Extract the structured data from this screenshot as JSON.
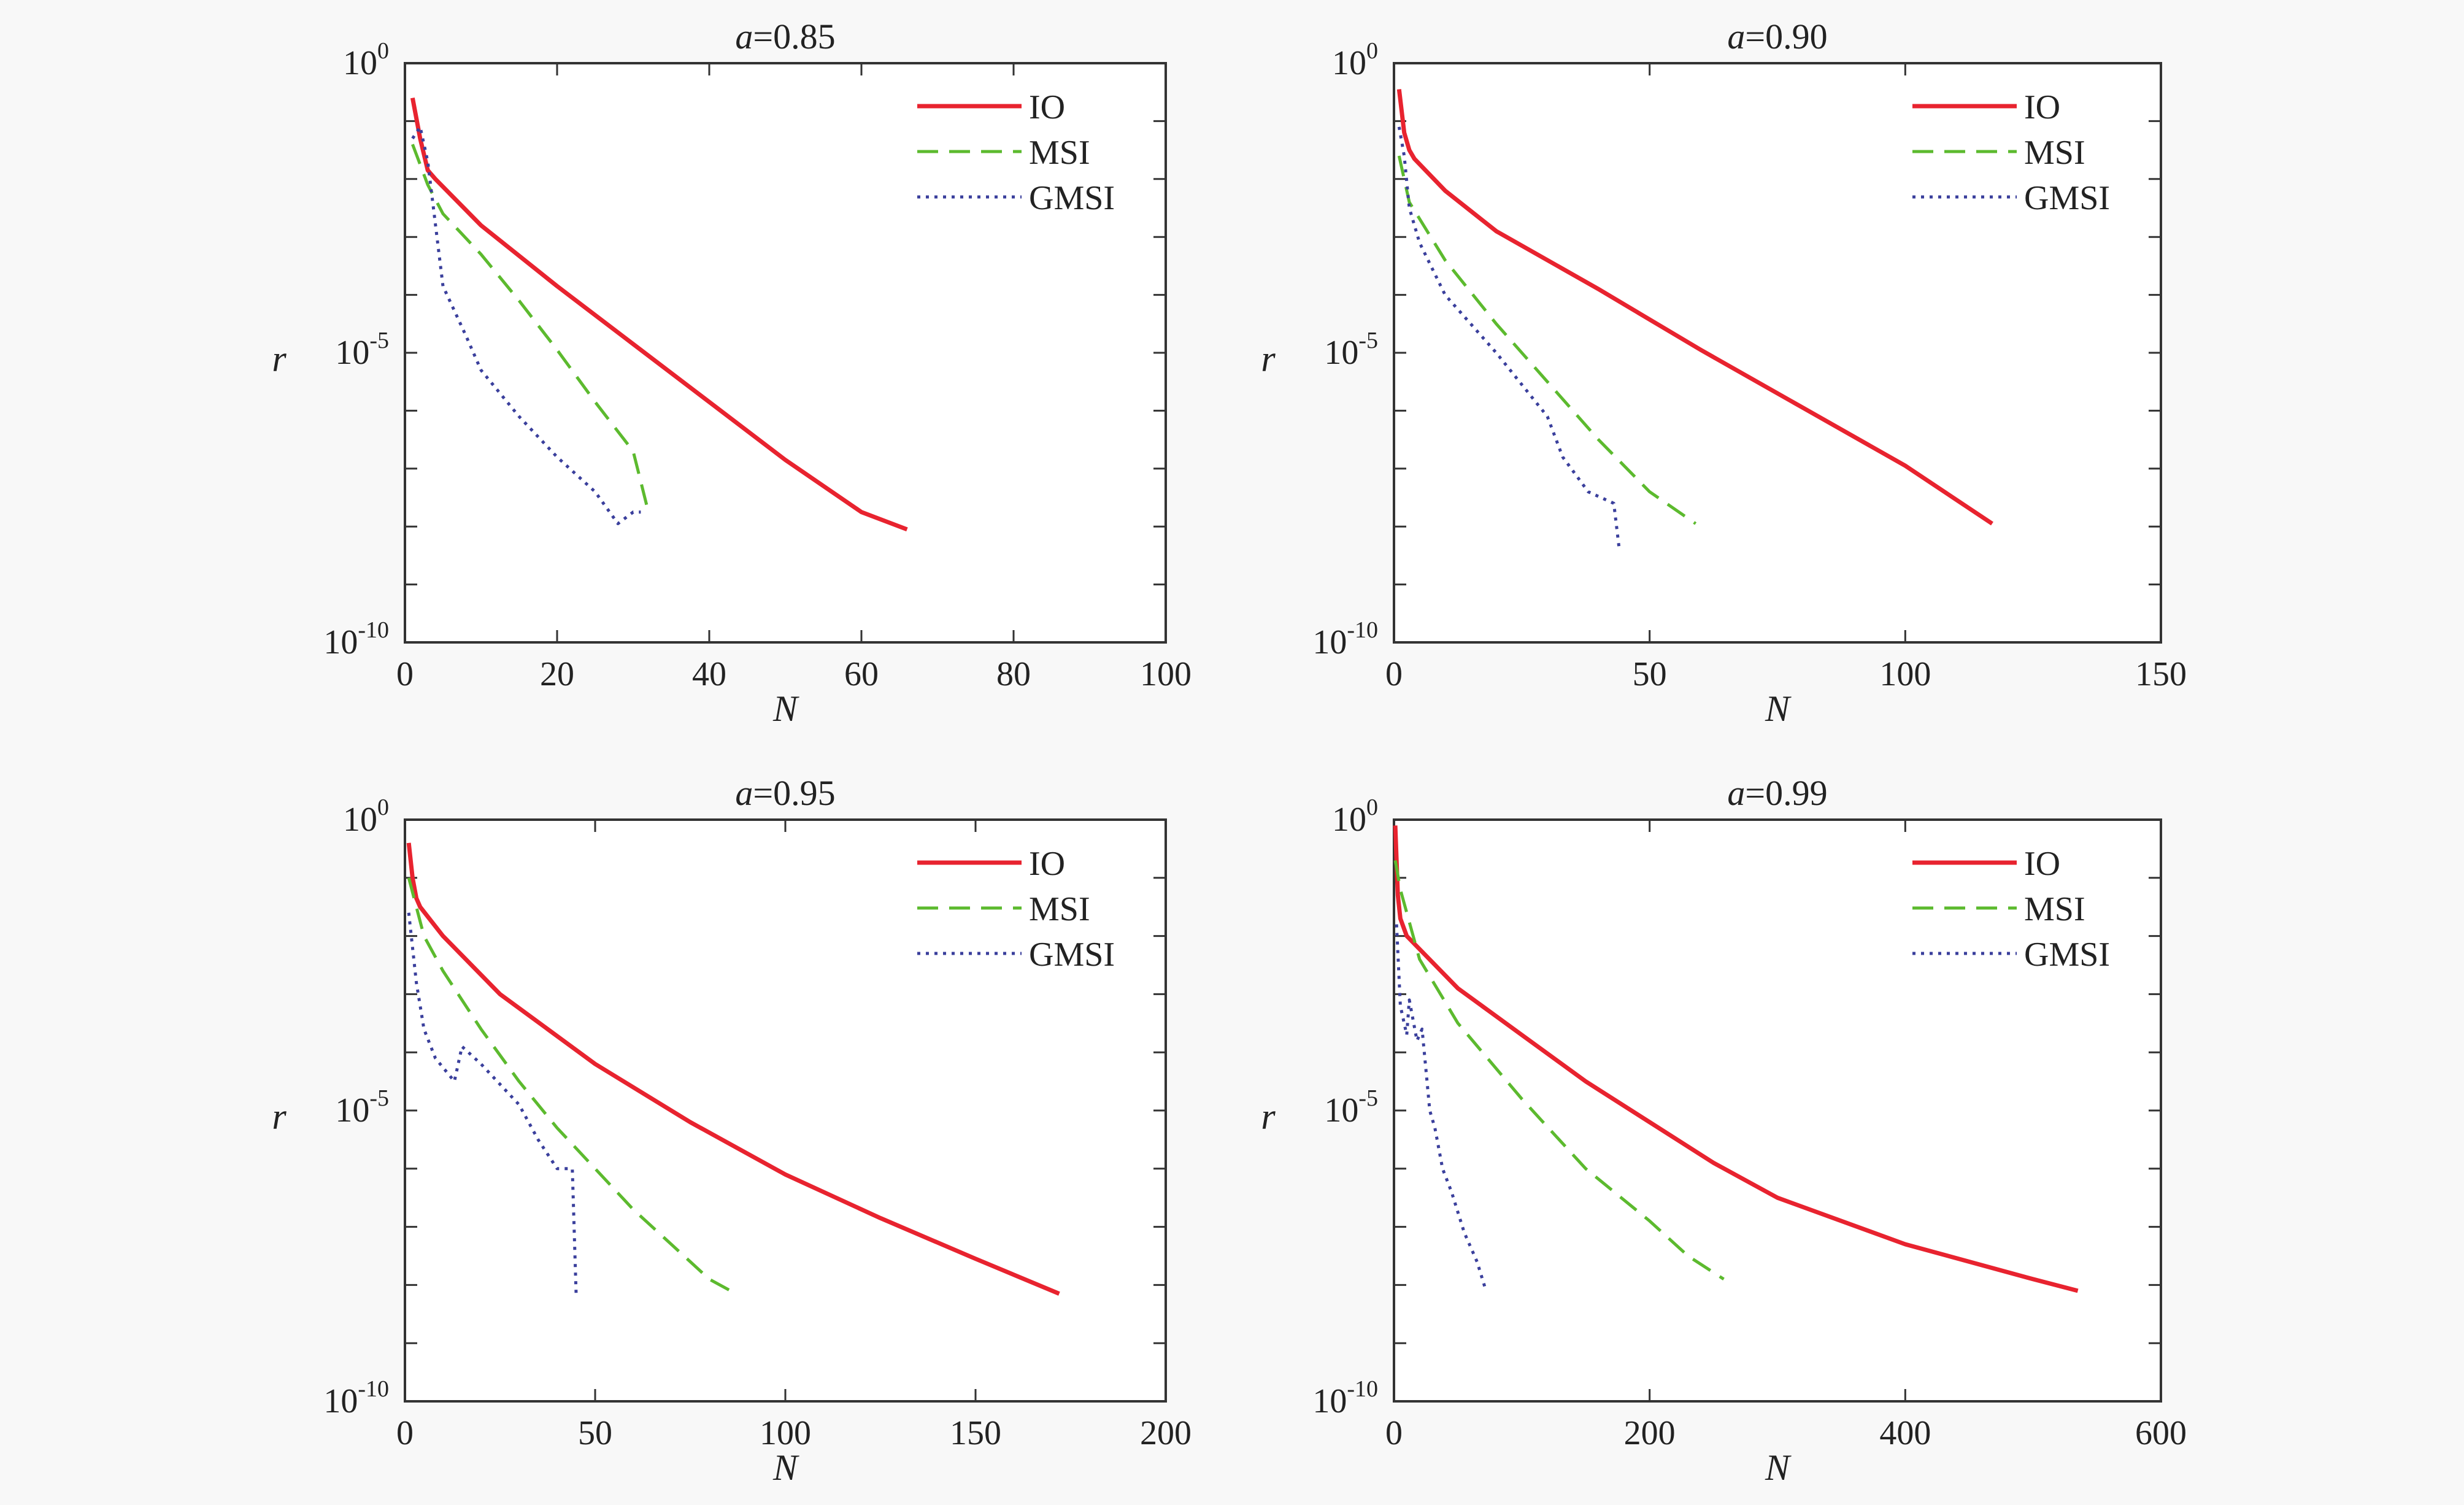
{
  "chart_data": [
    {
      "type": "line",
      "title_prefix": "a",
      "title_value": "=0.85",
      "xlabel": "N",
      "ylabel": "r",
      "xlim": [
        0,
        100
      ],
      "xticks": [
        "0",
        "20",
        "40",
        "60",
        "80",
        "100"
      ],
      "yscale": "log",
      "ylim_exp": [
        -10,
        0
      ],
      "ytick_exps": [
        "0",
        "-5",
        "-10"
      ],
      "legend": "top-right",
      "series": [
        {
          "name": "IO",
          "color": "#e8232f",
          "style": "solid",
          "points": [
            [
              1,
              -0.6
            ],
            [
              2,
              -1.3
            ],
            [
              3,
              -1.85
            ],
            [
              4,
              -2.0
            ],
            [
              10,
              -2.8
            ],
            [
              20,
              -3.85
            ],
            [
              30,
              -4.85
            ],
            [
              40,
              -5.85
            ],
            [
              50,
              -6.85
            ],
            [
              60,
              -7.75
            ],
            [
              66,
              -8.05
            ]
          ]
        },
        {
          "name": "MSI",
          "color": "#5cba2e",
          "style": "dashed",
          "points": [
            [
              1,
              -1.4
            ],
            [
              3,
              -2.1
            ],
            [
              5,
              -2.6
            ],
            [
              10,
              -3.3
            ],
            [
              15,
              -4.1
            ],
            [
              20,
              -4.95
            ],
            [
              25,
              -5.85
            ],
            [
              30,
              -6.7
            ],
            [
              32,
              -7.75
            ]
          ]
        },
        {
          "name": "GMSI",
          "color": "#3a3f9c",
          "style": "dotted",
          "points": [
            [
              1,
              -1.3
            ],
            [
              2,
              -1.1
            ],
            [
              3,
              -1.7
            ],
            [
              5,
              -3.85
            ],
            [
              8,
              -4.7
            ],
            [
              10,
              -5.3
            ],
            [
              15,
              -6.1
            ],
            [
              20,
              -6.8
            ],
            [
              25,
              -7.4
            ],
            [
              28,
              -7.95
            ],
            [
              30,
              -7.75
            ],
            [
              31,
              -7.75
            ]
          ]
        }
      ]
    },
    {
      "type": "line",
      "title_prefix": "a",
      "title_value": "=0.90",
      "xlabel": "N",
      "ylabel": "r",
      "xlim": [
        0,
        150
      ],
      "xticks": [
        "0",
        "50",
        "100",
        "150"
      ],
      "yscale": "log",
      "ylim_exp": [
        -10,
        0
      ],
      "ytick_exps": [
        "0",
        "-5",
        "-10"
      ],
      "legend": "top-right",
      "series": [
        {
          "name": "IO",
          "color": "#e8232f",
          "style": "solid",
          "points": [
            [
              1,
              -0.45
            ],
            [
              2,
              -1.2
            ],
            [
              3,
              -1.5
            ],
            [
              4,
              -1.65
            ],
            [
              10,
              -2.2
            ],
            [
              20,
              -2.9
            ],
            [
              40,
              -3.9
            ],
            [
              60,
              -4.95
            ],
            [
              80,
              -5.95
            ],
            [
              100,
              -6.95
            ],
            [
              117,
              -7.95
            ]
          ]
        },
        {
          "name": "MSI",
          "color": "#5cba2e",
          "style": "dashed",
          "points": [
            [
              1,
              -1.6
            ],
            [
              3,
              -2.4
            ],
            [
              10,
              -3.4
            ],
            [
              20,
              -4.5
            ],
            [
              30,
              -5.5
            ],
            [
              40,
              -6.5
            ],
            [
              50,
              -7.4
            ],
            [
              59,
              -7.95
            ]
          ]
        },
        {
          "name": "GMSI",
          "color": "#3a3f9c",
          "style": "dotted",
          "points": [
            [
              1,
              -1.1
            ],
            [
              2,
              -1.6
            ],
            [
              3,
              -2.5
            ],
            [
              5,
              -3.1
            ],
            [
              10,
              -4.0
            ],
            [
              20,
              -5.0
            ],
            [
              30,
              -6.1
            ],
            [
              33,
              -6.8
            ],
            [
              38,
              -7.4
            ],
            [
              43,
              -7.6
            ],
            [
              44,
              -8.35
            ]
          ]
        }
      ]
    },
    {
      "type": "line",
      "title_prefix": "a",
      "title_value": "=0.95",
      "xlabel": "N",
      "ylabel": "r",
      "xlim": [
        0,
        200
      ],
      "xticks": [
        "0",
        "50",
        "100",
        "150",
        "200"
      ],
      "yscale": "log",
      "ylim_exp": [
        -10,
        0
      ],
      "ytick_exps": [
        "0",
        "-5",
        "-10"
      ],
      "legend": "top-right",
      "series": [
        {
          "name": "IO",
          "color": "#e8232f",
          "style": "solid",
          "points": [
            [
              1,
              -0.4
            ],
            [
              2,
              -1.0
            ],
            [
              3,
              -1.35
            ],
            [
              4,
              -1.5
            ],
            [
              10,
              -2.0
            ],
            [
              25,
              -3.0
            ],
            [
              50,
              -4.2
            ],
            [
              75,
              -5.2
            ],
            [
              100,
              -6.1
            ],
            [
              125,
              -6.85
            ],
            [
              150,
              -7.55
            ],
            [
              172,
              -8.15
            ]
          ]
        },
        {
          "name": "MSI",
          "color": "#5cba2e",
          "style": "dashed",
          "points": [
            [
              1,
              -1.0
            ],
            [
              5,
              -2.0
            ],
            [
              10,
              -2.6
            ],
            [
              20,
              -3.6
            ],
            [
              30,
              -4.5
            ],
            [
              40,
              -5.3
            ],
            [
              50,
              -6.0
            ],
            [
              60,
              -6.7
            ],
            [
              70,
              -7.3
            ],
            [
              80,
              -7.9
            ],
            [
              87,
              -8.15
            ]
          ]
        },
        {
          "name": "GMSI",
          "color": "#3a3f9c",
          "style": "dotted",
          "points": [
            [
              1,
              -1.6
            ],
            [
              3,
              -2.8
            ],
            [
              5,
              -3.6
            ],
            [
              8,
              -4.1
            ],
            [
              13,
              -4.5
            ],
            [
              15,
              -3.9
            ],
            [
              20,
              -4.2
            ],
            [
              30,
              -4.9
            ],
            [
              35,
              -5.5
            ],
            [
              40,
              -6.0
            ],
            [
              44,
              -6.0
            ],
            [
              45,
              -8.15
            ]
          ]
        }
      ]
    },
    {
      "type": "line",
      "title_prefix": "a",
      "title_value": "=0.99",
      "xlabel": "N",
      "ylabel": "r",
      "xlim": [
        0,
        600
      ],
      "xticks": [
        "0",
        "200",
        "400",
        "600"
      ],
      "yscale": "log",
      "ylim_exp": [
        -10,
        0
      ],
      "ytick_exps": [
        "0",
        "-5",
        "-10"
      ],
      "legend": "top-right",
      "series": [
        {
          "name": "IO",
          "color": "#e8232f",
          "style": "solid",
          "points": [
            [
              1,
              -0.1
            ],
            [
              3,
              -1.3
            ],
            [
              5,
              -1.7
            ],
            [
              10,
              -2.0
            ],
            [
              50,
              -2.9
            ],
            [
              100,
              -3.7
            ],
            [
              150,
              -4.5
            ],
            [
              200,
              -5.2
            ],
            [
              250,
              -5.9
            ],
            [
              300,
              -6.5
            ],
            [
              400,
              -7.3
            ],
            [
              500,
              -7.9
            ],
            [
              535,
              -8.1
            ]
          ]
        },
        {
          "name": "MSI",
          "color": "#5cba2e",
          "style": "dashed",
          "points": [
            [
              1,
              -0.7
            ],
            [
              5,
              -1.2
            ],
            [
              20,
              -2.4
            ],
            [
              50,
              -3.5
            ],
            [
              100,
              -4.8
            ],
            [
              150,
              -6.0
            ],
            [
              200,
              -6.9
            ],
            [
              230,
              -7.5
            ],
            [
              258,
              -7.9
            ]
          ]
        },
        {
          "name": "GMSI",
          "color": "#3a3f9c",
          "style": "dotted",
          "points": [
            [
              2,
              -1.8
            ],
            [
              5,
              -3.2
            ],
            [
              10,
              -3.7
            ],
            [
              12,
              -3.1
            ],
            [
              18,
              -3.8
            ],
            [
              22,
              -3.6
            ],
            [
              25,
              -4.3
            ],
            [
              28,
              -5.0
            ],
            [
              32,
              -5.3
            ],
            [
              38,
              -6.0
            ],
            [
              45,
              -6.4
            ],
            [
              55,
              -7.1
            ],
            [
              65,
              -7.6
            ],
            [
              72,
              -8.1
            ]
          ]
        }
      ]
    }
  ]
}
